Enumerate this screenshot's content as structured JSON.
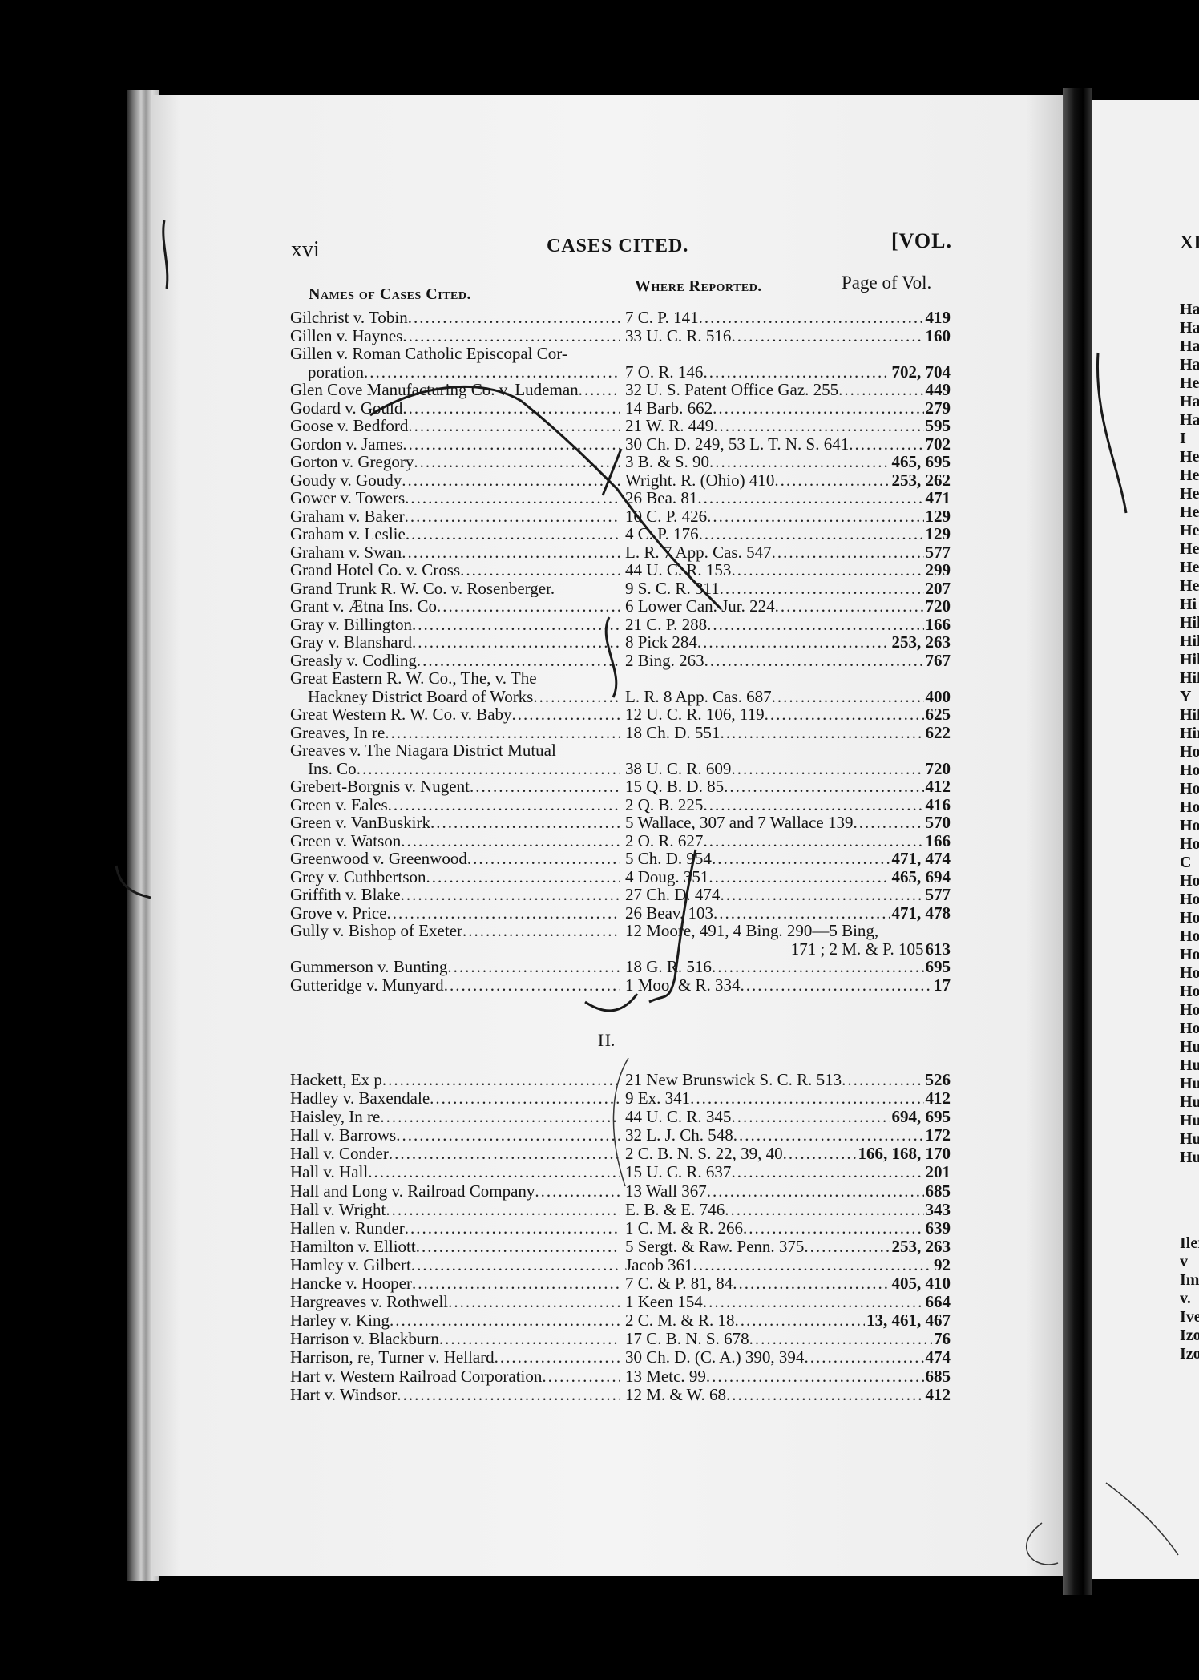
{
  "header": {
    "folio": "xvi",
    "title": "CASES CITED.",
    "vol": "[VOL."
  },
  "columns": {
    "names": "Names of Cases Cited.",
    "where": "Where Reported.",
    "page": "Page of Vol."
  },
  "section_g": [
    {
      "name": "Gilchrist v. Tobin",
      "cite": "7 C. P. 141",
      "page": "419"
    },
    {
      "name": "Gillen v. Haynes",
      "cite": "33 U. C. R. 516",
      "page": "160"
    },
    {
      "name": "Gillen v. Roman Catholic Episcopal Cor-",
      "cite": "",
      "page": "",
      "noleader": true
    },
    {
      "name": "poration",
      "cite": "7 O. R. 146",
      "page": "702, 704",
      "continuation": true
    },
    {
      "name": "Glen Cove Manufacturing Co. v. Ludeman",
      "cite": "32 U. S. Patent Office Gaz. 255",
      "page": "449"
    },
    {
      "name": "Godard v. Gould",
      "cite": "14 Barb. 662",
      "page": "279"
    },
    {
      "name": "Goose v. Bedford",
      "cite": "21 W. R. 449",
      "page": "595"
    },
    {
      "name": "Gordon v. James",
      "cite": "30 Ch. D. 249, 53 L. T. N. S. 641",
      "page": "702"
    },
    {
      "name": "Gorton v. Gregory",
      "cite": "3 B. & S. 90",
      "page": "465, 695"
    },
    {
      "name": "Goudy v. Goudy",
      "cite": "Wright. R. (Ohio) 410",
      "page": "253, 262"
    },
    {
      "name": "Gower v. Towers",
      "cite": "26 Bea. 81",
      "page": "471"
    },
    {
      "name": "Graham v. Baker",
      "cite": "10 C. P. 426",
      "page": "129"
    },
    {
      "name": "Graham v. Leslie",
      "cite": "4 C. P. 176",
      "page": "129"
    },
    {
      "name": "Graham v. Swan",
      "cite": "L. R. 7 App. Cas. 547",
      "page": "577"
    },
    {
      "name": "Grand Hotel Co. v. Cross",
      "cite": "44 U. C. R. 153",
      "page": "299"
    },
    {
      "name": "Grand Trunk R. W. Co. v. Rosenberger.",
      "cite": "9 S. C. R. 311",
      "page": "207",
      "noleader": true
    },
    {
      "name": "Grant v. Ætna Ins. Co",
      "cite": "6 Lower Can. Jur. 224",
      "page": "720"
    },
    {
      "name": "Gray v. Billington",
      "cite": "21 C. P. 288",
      "page": "166"
    },
    {
      "name": "Gray v. Blanshard",
      "cite": "8 Pick 284",
      "page": "253, 263"
    },
    {
      "name": "Greasly v. Codling",
      "cite": "2 Bing. 263",
      "page": "767"
    },
    {
      "name": "Great Eastern R. W. Co., The, v. The",
      "cite": "",
      "page": "",
      "noleader": true
    },
    {
      "name": "Hackney District Board of Works",
      "cite": "L. R. 8 App. Cas. 687",
      "page": "400",
      "continuation": true
    },
    {
      "name": "Great Western R. W. Co. v. Baby",
      "cite": "12 U. C. R. 106, 119",
      "page": "625"
    },
    {
      "name": "Greaves, In re",
      "cite": "18 Ch. D. 551",
      "page": "622"
    },
    {
      "name": "Greaves v. The Niagara District Mutual",
      "cite": "",
      "page": "",
      "noleader": true
    },
    {
      "name": "Ins. Co",
      "cite": "38 U. C. R. 609",
      "page": "720",
      "continuation": true
    },
    {
      "name": "Grebert-Borgnis v. Nugent",
      "cite": "15 Q. B. D. 85",
      "page": "412"
    },
    {
      "name": "Green v. Eales",
      "cite": "2 Q. B. 225",
      "page": "416"
    },
    {
      "name": "Green v. VanBuskirk",
      "cite": "5 Wallace, 307 and 7 Wallace 139",
      "page": "570"
    },
    {
      "name": "Green v. Watson",
      "cite": "2 O. R. 627",
      "page": "166"
    },
    {
      "name": "Greenwood v. Greenwood",
      "cite": "5 Ch. D. 954",
      "page": "471, 474"
    },
    {
      "name": "Grey v. Cuthbertson",
      "cite": "4 Doug. 351",
      "page": "465, 694"
    },
    {
      "name": "Griffith v. Blake",
      "cite": "27 Ch. D. 474",
      "page": "577"
    },
    {
      "name": "Grove v. Price",
      "cite": "26 Beav. 103",
      "page": "471, 478"
    },
    {
      "name": "Gully v. Bishop of Exeter",
      "cite": "12 Moore, 491, 4 Bing. 290—5 Bing,",
      "page": "",
      "nocite_leader": true
    },
    {
      "name": "",
      "cite": "171 ; 2 M. & P. 105",
      "page": "613",
      "continuation": true,
      "right": true
    },
    {
      "name": "Gummerson v. Bunting",
      "cite": "18 G. R. 516",
      "page": "695"
    },
    {
      "name": "Gutteridge v. Munyard",
      "cite": "1 Moo. & R. 334",
      "page": "17"
    }
  ],
  "section_h_heading": "H.",
  "section_h": [
    {
      "name": "Hackett, Ex p",
      "cite": "21 New Brunswick S. C. R. 513",
      "page": "526"
    },
    {
      "name": "Hadley v. Baxendale",
      "cite": "9 Ex. 341",
      "page": "412"
    },
    {
      "name": "Haisley, In re",
      "cite": "44 U. C. R. 345",
      "page": "694, 695"
    },
    {
      "name": "Hall v. Barrows",
      "cite": "32 L. J. Ch. 548",
      "page": "172"
    },
    {
      "name": "Hall v. Conder",
      "cite": "2 C. B. N. S. 22, 39, 40",
      "page": "166, 168, 170"
    },
    {
      "name": "Hall v. Hall",
      "cite": "15 U. C. R. 637",
      "page": "201"
    },
    {
      "name": "Hall and Long v. Railroad Company",
      "cite": "13 Wall 367",
      "page": "685"
    },
    {
      "name": "Hall v. Wright",
      "cite": "E. B. & E. 746",
      "page": "343"
    },
    {
      "name": "Hallen v. Runder",
      "cite": "1 C. M. & R. 266",
      "page": "639"
    },
    {
      "name": "Hamilton v. Elliott",
      "cite": "5 Sergt. & Raw. Penn. 375",
      "page": "253, 263"
    },
    {
      "name": "Hamley v. Gilbert",
      "cite": "Jacob 361",
      "page": "92"
    },
    {
      "name": "Hancke v. Hooper",
      "cite": "7 C. & P. 81, 84",
      "page": "405, 410"
    },
    {
      "name": "Hargreaves v. Rothwell",
      "cite": "1 Keen 154",
      "page": "664"
    },
    {
      "name": "Harley v. King",
      "cite": "2 C. M. & R. 18",
      "page": "13, 461, 467"
    },
    {
      "name": "Harrison v. Blackburn",
      "cite": "17 C. B. N. S. 678",
      "page": "76"
    },
    {
      "name": "Harrison, re, Turner v. Hellard",
      "cite": "30 Ch. D. (C. A.) 390, 394",
      "page": "474"
    },
    {
      "name": "Hart v. Western Railroad Corporation",
      "cite": "13 Metc. 99",
      "page": "685"
    },
    {
      "name": "Hart v. Windsor",
      "cite": "12 M. & W. 68",
      "page": "412"
    }
  ],
  "facing_page": {
    "folio": "XI",
    "fragments": [
      "Ha",
      "Ha",
      "Ha",
      "Ha",
      "He",
      "Ha",
      "Ha",
      "I",
      "He",
      "He",
      "He",
      "He",
      "He",
      "He",
      "He",
      "He",
      "Hi",
      "Hil",
      "Hil",
      "Hil",
      "Hil",
      "Y",
      "Hil",
      "Hir",
      "Hoo",
      "Hoo",
      "Hol",
      "Hol",
      "Hol",
      "Hol",
      "C",
      "Hol",
      "Hol",
      "Hor",
      "Hop",
      "Hop",
      "Hor",
      "Hou",
      "How",
      "How",
      "Hub",
      "Hub",
      "Hug",
      "Hun",
      "Hun",
      "Hun",
      "Hur"
    ],
    "fragments_i": [
      "Iler v",
      "Impe",
      "v.",
      "Iveso",
      "Izod",
      "Izon"
    ]
  }
}
